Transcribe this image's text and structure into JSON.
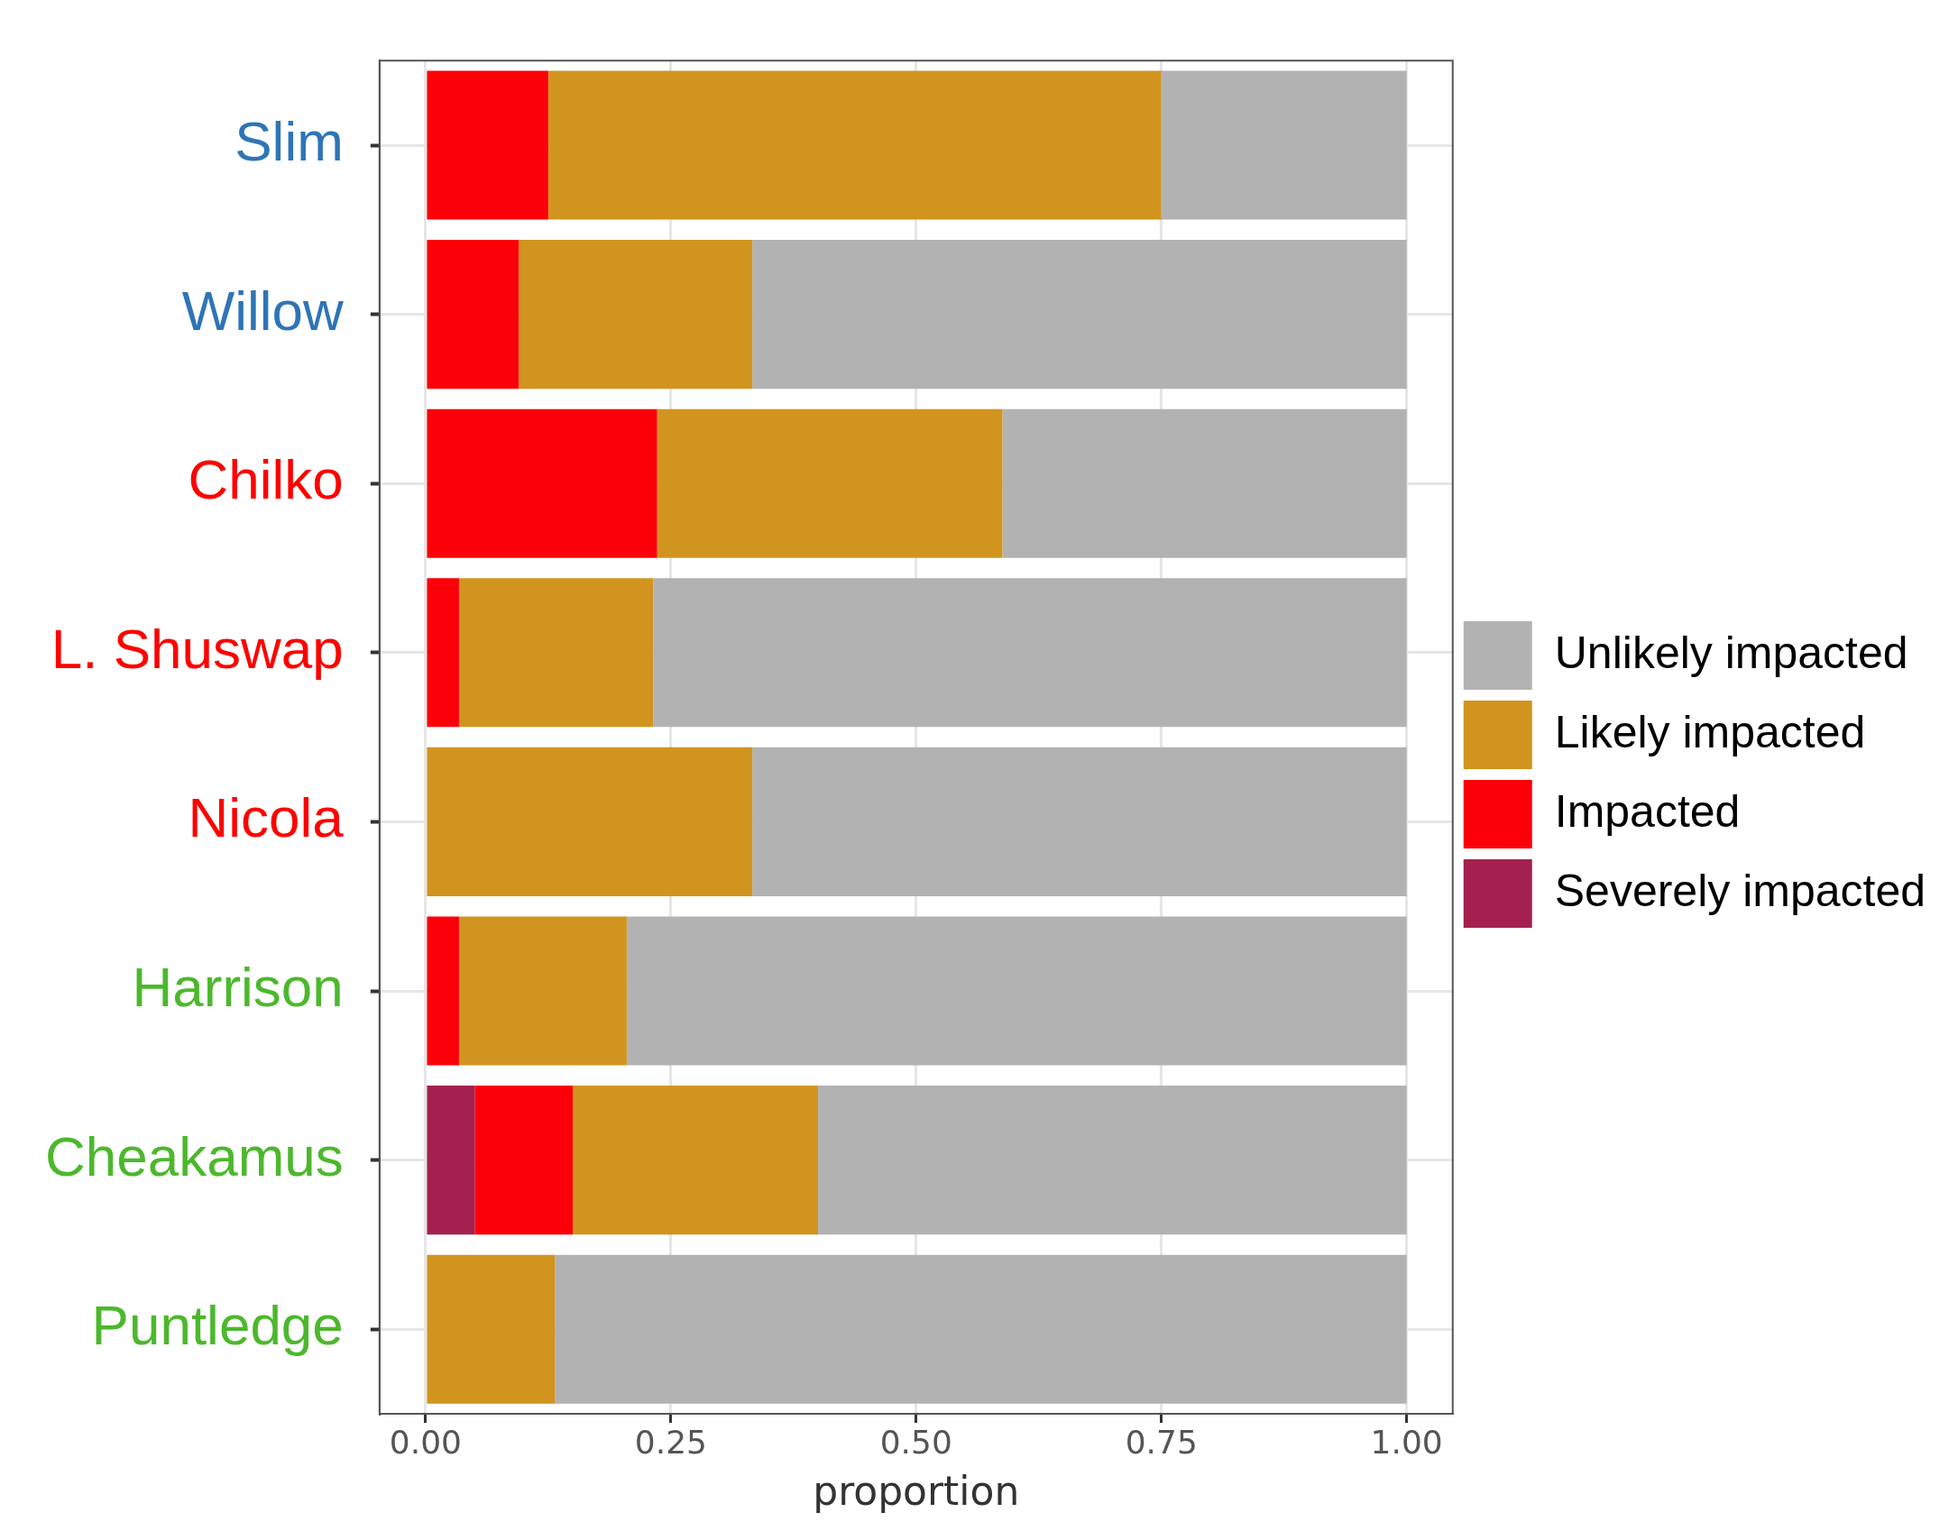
{
  "chart_data": {
    "type": "bar",
    "orientation": "horizontal",
    "stacked": true,
    "xlabel": "proportion",
    "categories": [
      "Slim",
      "Willow",
      "Chilko",
      "L. Shuswap",
      "Nicola",
      "Harrison",
      "Cheakamus",
      "Puntledge"
    ],
    "series": [
      {
        "name": "Severely impacted",
        "color": "#a3204f",
        "values": [
          0,
          0,
          0,
          0,
          0,
          0,
          0.05,
          0
        ]
      },
      {
        "name": "Impacted",
        "color": "#fb0008",
        "values": [
          0.125,
          0.095,
          0.236,
          0.034,
          0,
          0.034,
          0.1,
          0
        ]
      },
      {
        "name": "Likely impacted",
        "color": "#d1941e",
        "values": [
          0.625,
          0.238,
          0.352,
          0.198,
          0.333,
          0.171,
          0.25,
          0.132
        ]
      },
      {
        "name": "Unlikely impacted",
        "color": "#b2b2b2",
        "values": [
          0.25,
          0.667,
          0.412,
          0.768,
          0.667,
          0.795,
          0.6,
          0.868
        ]
      }
    ],
    "xlim": [
      -0.047,
      1.047
    ],
    "xticks": [
      {
        "value": 0,
        "label": "0.00"
      },
      {
        "value": 0.25,
        "label": "0.25"
      },
      {
        "value": 0.5,
        "label": "0.50"
      },
      {
        "value": 0.75,
        "label": "0.75"
      },
      {
        "value": 1,
        "label": "1.00"
      }
    ],
    "grid": true,
    "legend": "right"
  }
}
